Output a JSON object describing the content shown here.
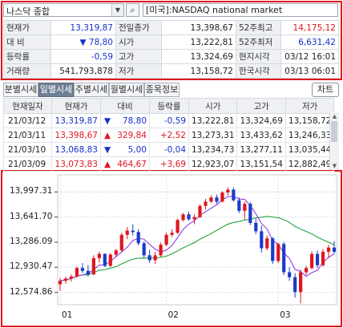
{
  "search": {
    "selected": "나스닥 종합",
    "market_name": "[미국]:NASDAQ national market"
  },
  "quote": {
    "rows": [
      [
        {
          "v": "현재가",
          "c": "lbl"
        },
        {
          "v": "13,319,87",
          "c": "num blue"
        },
        {
          "v": "전일종가",
          "c": "lbl"
        },
        {
          "v": "13,398,67",
          "c": "num"
        },
        {
          "v": "52주최고",
          "c": "lbl"
        },
        {
          "v": "14,175,12",
          "c": "num red"
        }
      ],
      [
        {
          "v": "대   비",
          "c": "lbl"
        },
        {
          "v": "▼        78,80",
          "c": "num blue"
        },
        {
          "v": "시가",
          "c": "lbl"
        },
        {
          "v": "13,222,81",
          "c": "num"
        },
        {
          "v": "52주최저",
          "c": "lbl"
        },
        {
          "v": "6,631,42",
          "c": "num blue"
        }
      ],
      [
        {
          "v": "등락률",
          "c": "lbl"
        },
        {
          "v": "-0,59",
          "c": "num blue"
        },
        {
          "v": "고가",
          "c": "lbl"
        },
        {
          "v": "13,324,69",
          "c": "num"
        },
        {
          "v": "현지시각",
          "c": "lbl"
        },
        {
          "v": "03/12 16:01",
          "c": "num"
        }
      ],
      [
        {
          "v": "거래량",
          "c": "lbl"
        },
        {
          "v": "541,793,878",
          "c": "num"
        },
        {
          "v": "저가",
          "c": "lbl"
        },
        {
          "v": "13,158,72",
          "c": "num"
        },
        {
          "v": "한국시각",
          "c": "lbl"
        },
        {
          "v": "03/13 06:01",
          "c": "num"
        }
      ]
    ]
  },
  "tabs": [
    "분별시세",
    "일별시세",
    "주별시세",
    "월별시세",
    "종목정보"
  ],
  "active_tab": 1,
  "chart_button": "차트",
  "history": {
    "columns": [
      "현재일자",
      "현재가",
      "대비",
      "등락률",
      "시가",
      "고가",
      "저가"
    ],
    "rows": [
      {
        "date": "21/03/12",
        "price": "13,319,87",
        "dir": "▼",
        "chg": "78,80",
        "pct": "-0,59",
        "open": "13,222,81",
        "high": "13,324,69",
        "low": "13,158,72",
        "color": "blue"
      },
      {
        "date": "21/03/11",
        "price": "13,398,67",
        "dir": "▲",
        "chg": "329,84",
        "pct": "+2,52",
        "open": "13,273,31",
        "high": "13,433,62",
        "low": "13,246,33",
        "color": "red"
      },
      {
        "date": "21/03/10",
        "price": "13,068,83",
        "dir": "▼",
        "chg": "5,00",
        "pct": "-0,04",
        "open": "13,234,73",
        "high": "13,277,11",
        "low": "13,035,44",
        "color": "blue"
      },
      {
        "date": "21/03/09",
        "price": "13,073,83",
        "dir": "▲",
        "chg": "464,67",
        "pct": "+3,69",
        "open": "12,923,07",
        "high": "13,151,54",
        "low": "12,882,49",
        "color": "red"
      }
    ]
  },
  "chart_data": {
    "type": "candlestick",
    "y_ticks": [
      "13,997.31",
      "13,641.70",
      "13,286.09",
      "12,930.47",
      "12,574.86"
    ],
    "y_tick_values": [
      13997.31,
      13641.7,
      13286.09,
      12930.47,
      12574.86
    ],
    "ylim": [
      12400,
      14240
    ],
    "x_ticks": [
      {
        "label": "01",
        "index": 0
      },
      {
        "label": "02",
        "index": 19
      },
      {
        "label": "03",
        "index": 39
      }
    ],
    "up_color": "#e0161e",
    "down_color": "#1a3ccc",
    "ma_short_color": "#8a2be2",
    "ma_long_color": "#0a9b2a",
    "candles": [
      [
        12690,
        12780,
        12600,
        12740
      ],
      [
        12740,
        12800,
        12700,
        12770
      ],
      [
        12770,
        12830,
        12730,
        12800
      ],
      [
        12800,
        12940,
        12780,
        12920
      ],
      [
        12920,
        12990,
        12850,
        12880
      ],
      [
        12880,
        12960,
        12800,
        12830
      ],
      [
        12830,
        13100,
        12820,
        13060
      ],
      [
        13060,
        13150,
        13000,
        13120
      ],
      [
        13120,
        13130,
        12930,
        12950
      ],
      [
        12950,
        13130,
        12940,
        13110
      ],
      [
        13110,
        13190,
        13080,
        13170
      ],
      [
        13170,
        13420,
        13150,
        13390
      ],
      [
        13390,
        13500,
        13330,
        13450
      ],
      [
        13450,
        13540,
        13380,
        13430
      ],
      [
        13430,
        13470,
        13240,
        13270
      ],
      [
        13270,
        13300,
        13070,
        13100
      ],
      [
        13100,
        13180,
        12990,
        13030
      ],
      [
        13030,
        13150,
        12980,
        13100
      ],
      [
        13100,
        13280,
        13080,
        13250
      ],
      [
        13250,
        13420,
        13230,
        13390
      ],
      [
        13390,
        13470,
        13360,
        13420
      ],
      [
        13420,
        13620,
        13400,
        13600
      ],
      [
        13600,
        13700,
        13580,
        13680
      ],
      [
        13680,
        13720,
        13590,
        13610
      ],
      [
        13610,
        13680,
        13540,
        13640
      ],
      [
        13640,
        13820,
        13630,
        13800
      ],
      [
        13800,
        13900,
        13750,
        13860
      ],
      [
        13860,
        13950,
        13840,
        13920
      ],
      [
        13920,
        13960,
        13830,
        13860
      ],
      [
        13860,
        14010,
        13850,
        13990
      ],
      [
        13990,
        14060,
        13950,
        14030
      ],
      [
        14030,
        14060,
        13860,
        13880
      ],
      [
        13880,
        13920,
        13700,
        13730
      ],
      [
        13730,
        13860,
        13610,
        13830
      ],
      [
        13830,
        13850,
        13530,
        13560
      ],
      [
        13560,
        13620,
        13400,
        13440
      ],
      [
        13440,
        13520,
        13140,
        13200
      ],
      [
        13200,
        13380,
        13170,
        13340
      ],
      [
        13340,
        13360,
        12980,
        13020
      ],
      [
        13020,
        13280,
        12990,
        13260
      ],
      [
        13260,
        13290,
        12820,
        12860
      ],
      [
        12860,
        12930,
        12740,
        12790
      ],
      [
        12790,
        12850,
        12500,
        12580
      ],
      [
        12580,
        12900,
        12420,
        12860
      ],
      [
        12860,
        12950,
        12820,
        12920
      ],
      [
        12920,
        13160,
        12900,
        13120
      ],
      [
        13120,
        13170,
        12920,
        12960
      ],
      [
        12960,
        13190,
        12940,
        13150
      ],
      [
        13150,
        13250,
        13060,
        13210
      ],
      [
        13210,
        13300,
        13120,
        13150
      ]
    ]
  }
}
